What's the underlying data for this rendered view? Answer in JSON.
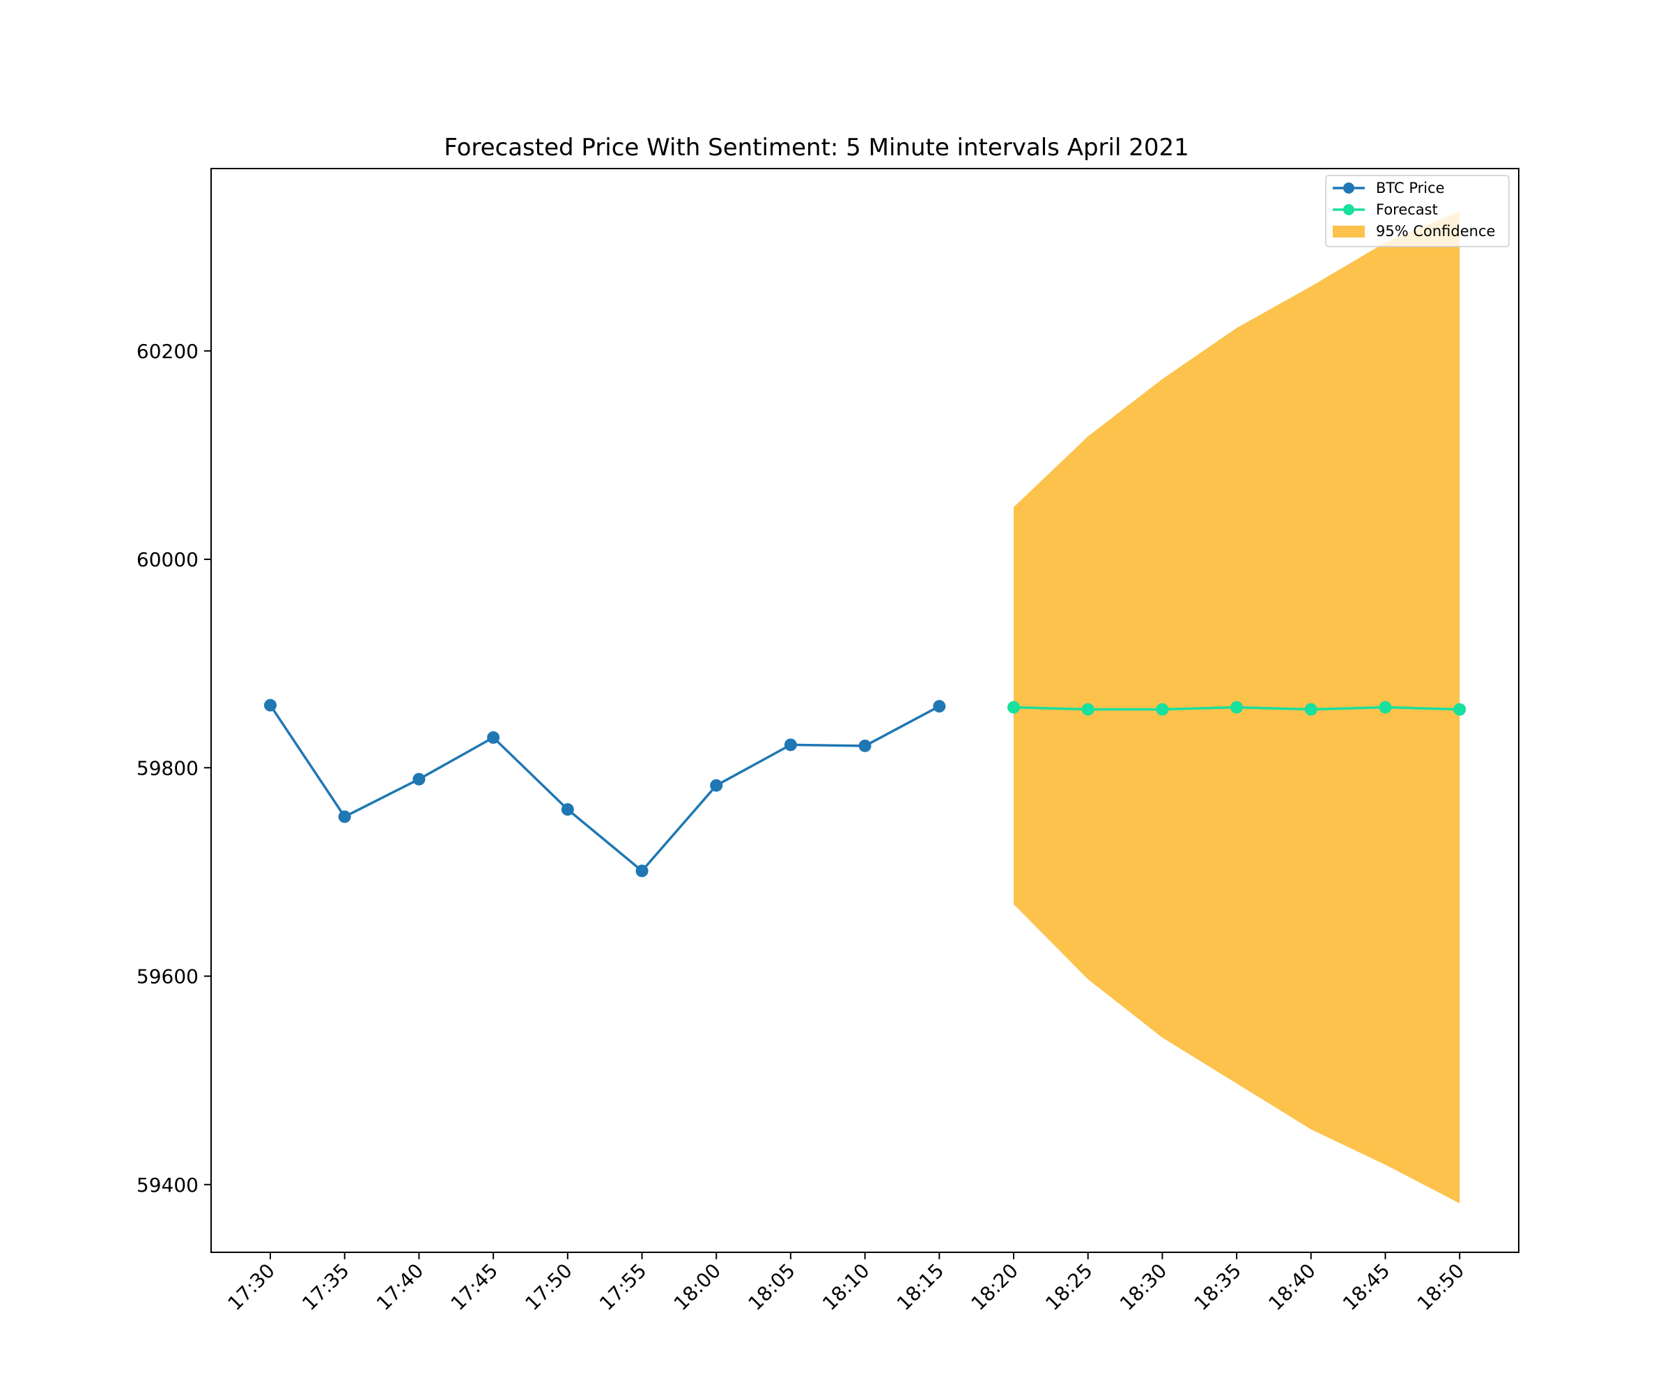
{
  "chart_data": {
    "type": "line",
    "title": "Forecasted Price With Sentiment: 5 Minute intervals April 2021",
    "xlabel": "",
    "ylabel": "",
    "categories": [
      "17:30",
      "17:35",
      "17:40",
      "17:45",
      "17:50",
      "17:55",
      "18:00",
      "18:05",
      "18:10",
      "18:15",
      "18:20",
      "18:25",
      "18:30",
      "18:35",
      "18:40",
      "18:45",
      "18:50"
    ],
    "ylim": [
      59335,
      60375
    ],
    "yticks": [
      59400,
      59600,
      59800,
      60000,
      60200
    ],
    "grid": false,
    "legend_position": "top-right",
    "series": [
      {
        "name": "BTC Price",
        "color": "#1f77b4",
        "x": [
          "17:30",
          "17:35",
          "17:40",
          "17:45",
          "17:50",
          "17:55",
          "18:00",
          "18:05",
          "18:10",
          "18:15"
        ],
        "values": [
          59860,
          59753,
          59789,
          59829,
          59760,
          59701,
          59783,
          59822,
          59821,
          59859
        ]
      },
      {
        "name": "Forecast",
        "color": "#18e09f",
        "x": [
          "18:20",
          "18:25",
          "18:30",
          "18:35",
          "18:40",
          "18:45",
          "18:50"
        ],
        "values": [
          59858,
          59856,
          59856,
          59858,
          59856,
          59858,
          59856
        ]
      }
    ],
    "bands": [
      {
        "name": "95% Confidence",
        "color": "#fbb31e",
        "x": [
          "18:20",
          "18:25",
          "18:30",
          "18:35",
          "18:40",
          "18:45",
          "18:50"
        ],
        "lower": [
          59669,
          59597,
          59541,
          59497,
          59453,
          59419,
          59382
        ],
        "upper": [
          60050,
          60118,
          60173,
          60222,
          60262,
          60304,
          60334
        ]
      }
    ]
  }
}
